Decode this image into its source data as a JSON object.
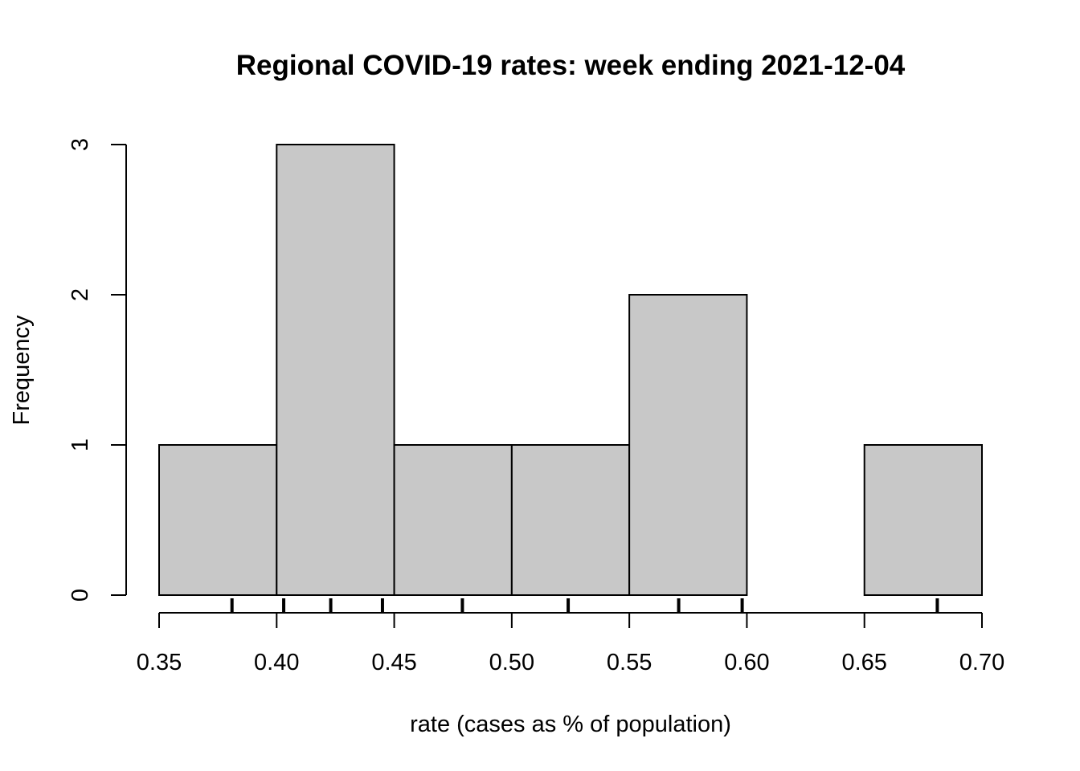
{
  "chart_data": {
    "type": "bar",
    "subtype": "histogram",
    "title": "Regional COVID-19 rates: week ending 2021-12-04",
    "xlabel": "rate (cases as % of population)",
    "ylabel": "Frequency",
    "bins": [
      {
        "start": 0.35,
        "end": 0.4,
        "count": 1
      },
      {
        "start": 0.4,
        "end": 0.45,
        "count": 3
      },
      {
        "start": 0.45,
        "end": 0.5,
        "count": 1
      },
      {
        "start": 0.5,
        "end": 0.55,
        "count": 1
      },
      {
        "start": 0.55,
        "end": 0.6,
        "count": 2
      },
      {
        "start": 0.6,
        "end": 0.65,
        "count": 0
      },
      {
        "start": 0.65,
        "end": 0.7,
        "count": 1
      }
    ],
    "rug_values": [
      0.381,
      0.403,
      0.423,
      0.445,
      0.479,
      0.524,
      0.571,
      0.598,
      0.681
    ],
    "xlim": [
      0.35,
      0.7
    ],
    "ylim": [
      0,
      3
    ],
    "x_ticks": [
      "0.35",
      "0.40",
      "0.45",
      "0.50",
      "0.55",
      "0.60",
      "0.65",
      "0.70"
    ],
    "y_ticks": [
      "0",
      "1",
      "2",
      "3"
    ],
    "grid": false,
    "bar_fill": "#c8c8c8"
  }
}
